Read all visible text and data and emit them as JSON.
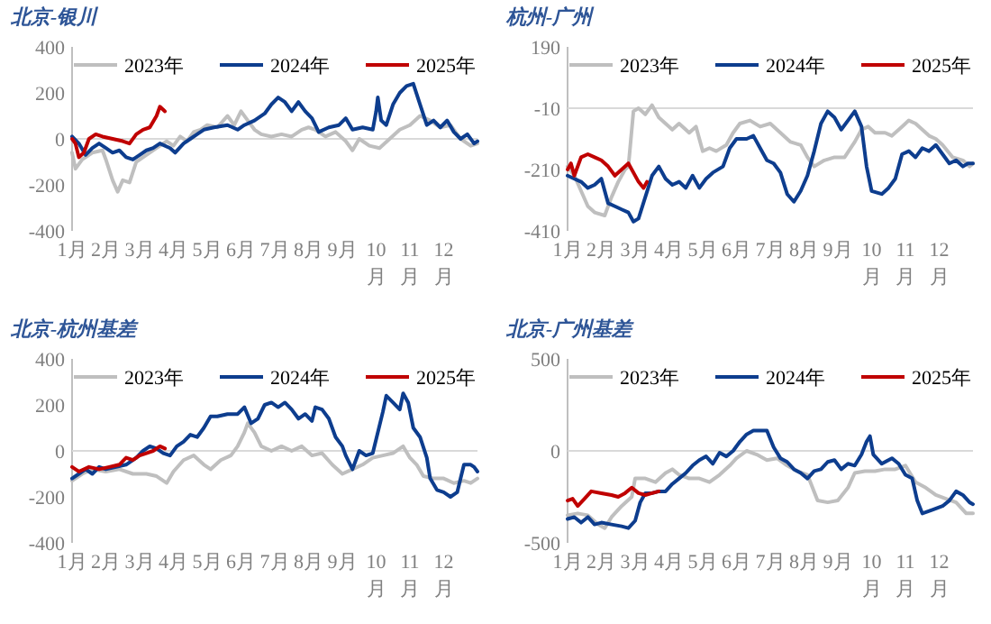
{
  "chart_data": [
    {
      "type": "line",
      "title": "北京-银川",
      "xlim": [
        1,
        13
      ],
      "ylim": [
        -400,
        400
      ],
      "yticks": [
        -400,
        -200,
        0,
        200,
        400
      ],
      "xticks": [
        {
          "value": 1,
          "label": "1月"
        },
        {
          "value": 2,
          "label": "2月"
        },
        {
          "value": 3,
          "label": "3月"
        },
        {
          "value": 4,
          "label": "4月"
        },
        {
          "value": 5,
          "label": "5月"
        },
        {
          "value": 6,
          "label": "6月"
        },
        {
          "value": 7,
          "label": "7月"
        },
        {
          "value": 8,
          "label": "8月"
        },
        {
          "value": 9,
          "label": "9月"
        },
        {
          "value": 10,
          "label": "10月"
        },
        {
          "value": 11,
          "label": "11月"
        },
        {
          "value": 12,
          "label": "12月"
        }
      ],
      "legend": "top",
      "ref_lines": [
        {
          "axis": "y",
          "value": 0,
          "color": "#d9d9d9"
        }
      ],
      "series": [
        {
          "name": "2023年",
          "color": "#bfbfbf",
          "x": [
            1.0,
            1.1,
            1.3,
            1.6,
            1.9,
            2.0,
            2.2,
            2.35,
            2.5,
            2.7,
            2.9,
            3.2,
            3.5,
            3.8,
            4.0,
            4.2,
            4.4,
            4.6,
            4.8,
            5.0,
            5.3,
            5.6,
            5.8,
            6.0,
            6.2,
            6.4,
            6.6,
            6.9,
            7.2,
            7.5,
            7.8,
            8.0,
            8.2,
            8.5,
            8.8,
            9.1,
            9.3,
            9.5,
            9.8,
            10.1,
            10.4,
            10.7,
            11.0,
            11.3,
            11.6,
            11.9,
            12.2,
            12.5,
            12.8,
            13.0
          ],
          "values": [
            -60,
            -130,
            -90,
            -60,
            -50,
            -90,
            -180,
            -230,
            -180,
            -190,
            -100,
            -70,
            -40,
            -10,
            -30,
            10,
            -10,
            30,
            40,
            60,
            50,
            100,
            60,
            120,
            80,
            40,
            20,
            10,
            20,
            10,
            40,
            50,
            40,
            10,
            30,
            -10,
            -50,
            0,
            -30,
            -40,
            0,
            40,
            60,
            100,
            80,
            50,
            60,
            0,
            -30,
            -20
          ]
        },
        {
          "name": "2024年",
          "color": "#0d3d8e",
          "x": [
            1.0,
            1.2,
            1.4,
            1.6,
            1.8,
            2.0,
            2.2,
            2.4,
            2.6,
            2.8,
            3.0,
            3.2,
            3.4,
            3.6,
            3.9,
            4.05,
            4.3,
            4.5,
            4.7,
            4.9,
            5.2,
            5.6,
            5.9,
            6.1,
            6.4,
            6.7,
            6.9,
            7.1,
            7.3,
            7.5,
            7.7,
            7.9,
            8.1,
            8.3,
            8.6,
            8.9,
            9.1,
            9.3,
            9.6,
            9.9,
            10.0,
            10.05,
            10.15,
            10.3,
            10.5,
            10.7,
            10.9,
            11.1,
            11.3,
            11.5,
            11.7,
            11.9,
            12.1,
            12.3,
            12.5,
            12.7,
            12.9,
            13.0
          ],
          "values": [
            10,
            -20,
            -70,
            -40,
            -20,
            -40,
            -60,
            -50,
            -80,
            -90,
            -70,
            -50,
            -40,
            -20,
            -40,
            -60,
            -20,
            0,
            20,
            40,
            50,
            60,
            40,
            60,
            80,
            110,
            150,
            180,
            160,
            120,
            160,
            120,
            90,
            30,
            50,
            60,
            90,
            40,
            50,
            40,
            120,
            180,
            80,
            60,
            150,
            200,
            230,
            240,
            150,
            60,
            80,
            50,
            80,
            30,
            0,
            20,
            -20,
            -10
          ]
        },
        {
          "name": "2025年",
          "color": "#c00000",
          "x": [
            1.0,
            1.1,
            1.2,
            1.35,
            1.5,
            1.7,
            1.9,
            2.2,
            2.5,
            2.7,
            2.9,
            3.1,
            3.3,
            3.5,
            3.6,
            3.75
          ],
          "values": [
            0,
            -20,
            -80,
            -60,
            0,
            20,
            10,
            0,
            -10,
            -20,
            20,
            40,
            50,
            100,
            140,
            120
          ]
        }
      ]
    },
    {
      "type": "line",
      "title": "杭州-广州",
      "xlim": [
        1,
        13
      ],
      "ylim": [
        -410,
        190
      ],
      "yticks": [
        -410,
        -210,
        -10,
        190
      ],
      "xticks": [
        {
          "value": 1,
          "label": "1月"
        },
        {
          "value": 2,
          "label": "2月"
        },
        {
          "value": 3,
          "label": "3月"
        },
        {
          "value": 4,
          "label": "4月"
        },
        {
          "value": 5,
          "label": "5月"
        },
        {
          "value": 6,
          "label": "6月"
        },
        {
          "value": 7,
          "label": "7月"
        },
        {
          "value": 8,
          "label": "8月"
        },
        {
          "value": 9,
          "label": "9月"
        },
        {
          "value": 10,
          "label": "10月"
        },
        {
          "value": 11,
          "label": "11月"
        },
        {
          "value": 12,
          "label": "12月"
        }
      ],
      "legend": "top",
      "ref_lines": [
        {
          "axis": "y",
          "value": -10,
          "color": "#d9d9d9"
        }
      ],
      "series": [
        {
          "name": "2023年",
          "color": "#bfbfbf",
          "x": [
            1.0,
            1.2,
            1.4,
            1.6,
            1.8,
            2.1,
            2.3,
            2.5,
            2.7,
            2.8,
            2.95,
            3.1,
            3.3,
            3.5,
            3.7,
            3.9,
            4.1,
            4.3,
            4.6,
            4.8,
            5.0,
            5.2,
            5.4,
            5.7,
            5.9,
            6.1,
            6.4,
            6.7,
            7.0,
            7.3,
            7.6,
            7.9,
            8.1,
            8.3,
            8.6,
            8.9,
            9.2,
            9.5,
            9.7,
            9.9,
            10.1,
            10.4,
            10.6,
            10.9,
            11.1,
            11.3,
            11.5,
            11.7,
            11.9,
            12.1,
            12.4,
            12.7,
            12.9,
            13.0
          ],
          "values": [
            -200,
            -230,
            -280,
            -330,
            -350,
            -360,
            -300,
            -250,
            -210,
            -200,
            -20,
            -10,
            -30,
            0,
            -40,
            -60,
            -80,
            -60,
            -90,
            -70,
            -150,
            -140,
            -150,
            -130,
            -90,
            -60,
            -50,
            -70,
            -60,
            -90,
            -120,
            -130,
            -170,
            -200,
            -180,
            -170,
            -170,
            -120,
            -80,
            -70,
            -90,
            -90,
            -100,
            -70,
            -50,
            -60,
            -80,
            -100,
            -110,
            -130,
            -170,
            -180,
            -200,
            -190
          ]
        },
        {
          "name": "2024年",
          "color": "#0d3d8e",
          "x": [
            1.0,
            1.2,
            1.4,
            1.6,
            1.8,
            2.0,
            2.2,
            2.4,
            2.6,
            2.8,
            2.95,
            3.1,
            3.3,
            3.5,
            3.7,
            3.9,
            4.1,
            4.3,
            4.5,
            4.7,
            4.9,
            5.1,
            5.3,
            5.6,
            5.8,
            6.0,
            6.3,
            6.5,
            6.7,
            6.9,
            7.1,
            7.3,
            7.5,
            7.7,
            7.9,
            8.1,
            8.3,
            8.5,
            8.7,
            8.9,
            9.1,
            9.3,
            9.5,
            9.7,
            9.85,
            10.0,
            10.3,
            10.5,
            10.7,
            10.9,
            11.1,
            11.3,
            11.5,
            11.7,
            11.9,
            12.1,
            12.3,
            12.5,
            12.7,
            12.85,
            13.0
          ],
          "values": [
            -230,
            -240,
            -250,
            -270,
            -260,
            -240,
            -320,
            -330,
            -340,
            -350,
            -380,
            -370,
            -300,
            -230,
            -200,
            -240,
            -260,
            -250,
            -270,
            -230,
            -270,
            -240,
            -220,
            -200,
            -140,
            -110,
            -110,
            -100,
            -140,
            -180,
            -190,
            -220,
            -290,
            -315,
            -280,
            -230,
            -150,
            -60,
            -20,
            -40,
            -80,
            -50,
            -20,
            -70,
            -200,
            -280,
            -290,
            -270,
            -240,
            -160,
            -150,
            -170,
            -140,
            -150,
            -130,
            -160,
            -190,
            -180,
            -200,
            -190,
            -190
          ]
        },
        {
          "name": "2025年",
          "color": "#c00000",
          "x": [
            1.0,
            1.1,
            1.2,
            1.4,
            1.6,
            1.8,
            2.0,
            2.2,
            2.4,
            2.6,
            2.8,
            2.95,
            3.1,
            3.25,
            3.35
          ],
          "values": [
            -210,
            -190,
            -230,
            -170,
            -160,
            -170,
            -180,
            -200,
            -230,
            -210,
            -190,
            -220,
            -250,
            -270,
            -250
          ]
        }
      ]
    },
    {
      "type": "line",
      "title": "北京-杭州基差",
      "xlim": [
        1,
        13
      ],
      "ylim": [
        -400,
        400
      ],
      "yticks": [
        -400,
        -200,
        0,
        200,
        400
      ],
      "xticks": [
        {
          "value": 1,
          "label": "1月"
        },
        {
          "value": 2,
          "label": "2月"
        },
        {
          "value": 3,
          "label": "3月"
        },
        {
          "value": 4,
          "label": "4月"
        },
        {
          "value": 5,
          "label": "5月"
        },
        {
          "value": 6,
          "label": "6月"
        },
        {
          "value": 7,
          "label": "7月"
        },
        {
          "value": 8,
          "label": "8月"
        },
        {
          "value": 9,
          "label": "9月"
        },
        {
          "value": 10,
          "label": "10月"
        },
        {
          "value": 11,
          "label": "11月"
        },
        {
          "value": 12,
          "label": "12月"
        }
      ],
      "legend": "top",
      "ref_lines": [
        {
          "axis": "y",
          "value": 0,
          "color": "#d9d9d9"
        }
      ],
      "series": [
        {
          "name": "2023年",
          "color": "#bfbfbf",
          "x": [
            1.0,
            1.3,
            1.6,
            2.0,
            2.4,
            2.8,
            3.2,
            3.5,
            3.8,
            4.0,
            4.3,
            4.6,
            4.9,
            5.1,
            5.4,
            5.7,
            5.9,
            6.1,
            6.2,
            6.4,
            6.6,
            6.9,
            7.2,
            7.5,
            7.8,
            8.1,
            8.4,
            8.7,
            9.0,
            9.3,
            9.6,
            9.9,
            10.2,
            10.5,
            10.8,
            11.0,
            11.2,
            11.4,
            11.7,
            12.0,
            12.3,
            12.6,
            12.8,
            13.0
          ],
          "values": [
            -130,
            -100,
            -80,
            -90,
            -80,
            -100,
            -100,
            -110,
            -140,
            -90,
            -40,
            -20,
            -60,
            -80,
            -40,
            -20,
            20,
            80,
            120,
            80,
            20,
            0,
            20,
            0,
            20,
            -20,
            -10,
            -60,
            -100,
            -80,
            -60,
            -30,
            -20,
            -10,
            20,
            -30,
            -60,
            -110,
            -120,
            -120,
            -140,
            -130,
            -140,
            -120
          ]
        },
        {
          "name": "2024年",
          "color": "#0d3d8e",
          "x": [
            1.0,
            1.2,
            1.4,
            1.6,
            1.8,
            2.0,
            2.3,
            2.6,
            2.9,
            3.1,
            3.3,
            3.5,
            3.7,
            3.9,
            4.1,
            4.3,
            4.5,
            4.7,
            4.9,
            5.1,
            5.3,
            5.6,
            5.9,
            6.1,
            6.3,
            6.5,
            6.7,
            6.9,
            7.1,
            7.3,
            7.5,
            7.7,
            7.9,
            8.1,
            8.2,
            8.4,
            8.6,
            8.8,
            9.0,
            9.1,
            9.3,
            9.5,
            9.7,
            9.9,
            10.0,
            10.2,
            10.3,
            10.5,
            10.7,
            10.8,
            10.95,
            11.1,
            11.3,
            11.5,
            11.6,
            11.8,
            12.0,
            12.2,
            12.4,
            12.5,
            12.6,
            12.8,
            12.9,
            13.0
          ],
          "values": [
            -120,
            -100,
            -80,
            -100,
            -70,
            -80,
            -70,
            -60,
            -30,
            0,
            20,
            10,
            -10,
            -20,
            20,
            40,
            70,
            60,
            100,
            150,
            150,
            160,
            160,
            190,
            120,
            140,
            200,
            210,
            190,
            210,
            180,
            140,
            160,
            130,
            190,
            180,
            140,
            60,
            20,
            -20,
            -80,
            0,
            -20,
            -10,
            50,
            170,
            240,
            210,
            180,
            250,
            210,
            100,
            60,
            -30,
            -120,
            -170,
            -180,
            -200,
            -180,
            -120,
            -60,
            -60,
            -70,
            -90
          ]
        },
        {
          "name": "2025年",
          "color": "#c00000",
          "x": [
            1.0,
            1.2,
            1.5,
            1.8,
            2.1,
            2.4,
            2.6,
            2.8,
            3.0,
            3.2,
            3.4,
            3.6,
            3.75
          ],
          "values": [
            -70,
            -90,
            -70,
            -80,
            -70,
            -60,
            -30,
            -40,
            -20,
            -10,
            0,
            20,
            10
          ]
        }
      ]
    },
    {
      "type": "line",
      "title": "北京-广州基差",
      "xlim": [
        1,
        13
      ],
      "ylim": [
        -500,
        500
      ],
      "yticks": [
        -500,
        0,
        500
      ],
      "xticks": [
        {
          "value": 1,
          "label": "1月"
        },
        {
          "value": 2,
          "label": "2月"
        },
        {
          "value": 3,
          "label": "3月"
        },
        {
          "value": 4,
          "label": "4月"
        },
        {
          "value": 5,
          "label": "5月"
        },
        {
          "value": 6,
          "label": "6月"
        },
        {
          "value": 7,
          "label": "7月"
        },
        {
          "value": 8,
          "label": "8月"
        },
        {
          "value": 9,
          "label": "9月"
        },
        {
          "value": 10,
          "label": "10月"
        },
        {
          "value": 11,
          "label": "11月"
        },
        {
          "value": 12,
          "label": "12月"
        }
      ],
      "legend": "top",
      "ref_lines": [
        {
          "axis": "y",
          "value": 0,
          "color": "#d9d9d9"
        }
      ],
      "series": [
        {
          "name": "2023年",
          "color": "#bfbfbf",
          "x": [
            1.0,
            1.3,
            1.6,
            1.9,
            2.1,
            2.3,
            2.6,
            2.9,
            3.0,
            3.3,
            3.6,
            3.9,
            4.1,
            4.3,
            4.6,
            4.9,
            5.2,
            5.5,
            5.8,
            6.0,
            6.3,
            6.6,
            6.9,
            7.2,
            7.5,
            7.8,
            8.1,
            8.4,
            8.7,
            9.0,
            9.3,
            9.5,
            9.8,
            10.1,
            10.4,
            10.7,
            11.0,
            11.3,
            11.6,
            11.9,
            12.2,
            12.5,
            12.8,
            13.0
          ],
          "values": [
            -350,
            -340,
            -350,
            -400,
            -420,
            -360,
            -300,
            -250,
            -150,
            -150,
            -170,
            -120,
            -100,
            -130,
            -150,
            -150,
            -170,
            -130,
            -80,
            -40,
            0,
            -20,
            -50,
            -40,
            -80,
            -110,
            -130,
            -270,
            -280,
            -270,
            -200,
            -120,
            -110,
            -110,
            -100,
            -100,
            -80,
            -170,
            -200,
            -240,
            -260,
            -280,
            -340,
            -340
          ]
        },
        {
          "name": "2024年",
          "color": "#0d3d8e",
          "x": [
            1.0,
            1.2,
            1.4,
            1.6,
            1.8,
            2.0,
            2.3,
            2.6,
            2.8,
            3.0,
            3.15,
            3.3,
            3.5,
            3.7,
            3.9,
            4.1,
            4.3,
            4.5,
            4.7,
            4.9,
            5.1,
            5.3,
            5.5,
            5.7,
            5.9,
            6.1,
            6.3,
            6.5,
            6.7,
            6.9,
            7.1,
            7.3,
            7.5,
            7.7,
            7.9,
            8.1,
            8.3,
            8.5,
            8.7,
            8.9,
            9.1,
            9.3,
            9.5,
            9.7,
            9.85,
            9.95,
            10.05,
            10.3,
            10.6,
            10.8,
            11.0,
            11.2,
            11.35,
            11.5,
            11.8,
            12.1,
            12.3,
            12.5,
            12.7,
            12.9,
            13.0
          ],
          "values": [
            -370,
            -360,
            -390,
            -360,
            -400,
            -390,
            -400,
            -410,
            -420,
            -380,
            -280,
            -230,
            -230,
            -220,
            -220,
            -180,
            -150,
            -120,
            -80,
            -50,
            -30,
            -70,
            -10,
            -30,
            0,
            50,
            90,
            110,
            110,
            110,
            20,
            -40,
            -60,
            -100,
            -120,
            -150,
            -110,
            -100,
            -60,
            -50,
            -100,
            -70,
            -80,
            -20,
            50,
            80,
            -20,
            -70,
            -40,
            -70,
            -130,
            -150,
            -270,
            -340,
            -320,
            -300,
            -270,
            -220,
            -240,
            -280,
            -290
          ]
        },
        {
          "name": "2025年",
          "color": "#c00000",
          "x": [
            1.0,
            1.15,
            1.3,
            1.5,
            1.7,
            2.0,
            2.3,
            2.5,
            2.7,
            2.9,
            3.1,
            3.3,
            3.5,
            3.7
          ],
          "values": [
            -270,
            -260,
            -300,
            -260,
            -220,
            -230,
            -240,
            -250,
            -230,
            -200,
            -230,
            -240,
            -230,
            -220
          ]
        }
      ]
    }
  ]
}
